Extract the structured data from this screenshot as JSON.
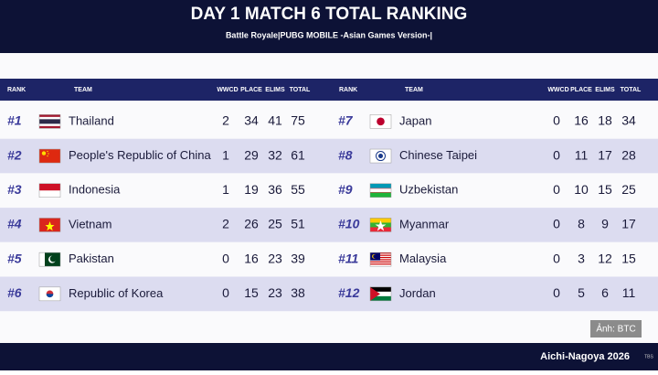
{
  "header": {
    "title": "DAY 1 MATCH 6 TOTAL RANKING",
    "subtitle": "Battle Royale|PUBG MOBILE -Asian Games Version-|"
  },
  "table": {
    "columns": [
      "RANK",
      "TEAM",
      "WWCD",
      "PLACE",
      "ELIMS",
      "TOTAL"
    ],
    "rows": [
      [
        "#1",
        "Thailand",
        2,
        34,
        41,
        75
      ],
      [
        "#2",
        "People's Republic of China",
        1,
        29,
        32,
        61
      ],
      [
        "#3",
        "Indonesia",
        1,
        19,
        36,
        55
      ],
      [
        "#4",
        "Vietnam",
        2,
        26,
        25,
        51
      ],
      [
        "#5",
        "Pakistan",
        0,
        16,
        23,
        39
      ],
      [
        "#6",
        "Republic of Korea",
        0,
        15,
        23,
        38
      ],
      [
        "#7",
        "Japan",
        0,
        16,
        18,
        34
      ],
      [
        "#8",
        "Chinese Taipei",
        0,
        11,
        17,
        28
      ],
      [
        "#9",
        "Uzbekistan",
        0,
        10,
        15,
        25
      ],
      [
        "#10",
        "Myanmar",
        0,
        8,
        9,
        17
      ],
      [
        "#11",
        "Malaysia",
        0,
        3,
        12,
        15
      ],
      [
        "#12",
        "Jordan",
        0,
        5,
        6,
        11
      ]
    ]
  },
  "credit": "Ảnh: BTC",
  "footer": {
    "event": "Aichi-Nagoya 2026",
    "broadcaster": "TBS"
  }
}
